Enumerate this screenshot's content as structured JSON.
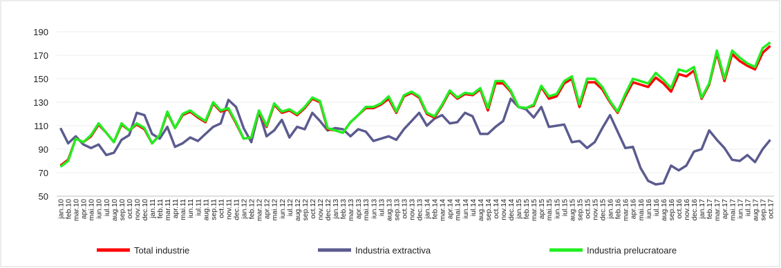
{
  "chart_data": {
    "type": "line",
    "categories": [
      "jan.10",
      "feb.10",
      "mar.10",
      "apr.10",
      "mai.10",
      "iun.10",
      "iul.10",
      "aug.10",
      "sep.10",
      "oct.10",
      "nov.10",
      "dec.10",
      "jan.11",
      "feb.11",
      "mar.11",
      "apr.11",
      "mai.11",
      "iun.11",
      "iul.11",
      "aug.11",
      "sep.11",
      "oct.11",
      "nov.11",
      "dec.11",
      "jan.12",
      "feb.12",
      "mar.12",
      "apr.12",
      "mai.12",
      "iun.12",
      "iul.12",
      "aug.12",
      "sep.12",
      "oct.12",
      "nov.12",
      "dec.12",
      "jan.13",
      "feb.13",
      "mar.13",
      "apr.13",
      "mai.13",
      "iun.13",
      "iul.13",
      "aug.13",
      "sep.13",
      "oct.13",
      "nov.13",
      "dec.13",
      "jan.14",
      "feb.14",
      "mar.14",
      "apr.14",
      "mai.14",
      "iun.14",
      "iul.14",
      "aug.14",
      "sep.14",
      "oct.14",
      "nov.14",
      "dec.14",
      "jan.15",
      "feb.15",
      "mar.15",
      "apr.15",
      "mai.15",
      "iun.15",
      "iul.15",
      "aug.15",
      "sep.15",
      "oct.15",
      "nov.15",
      "dec.15",
      "jan.16",
      "feb.16",
      "mar.16",
      "apr.16",
      "mai.16",
      "iun.16",
      "iul.16",
      "aug.16",
      "sep.16",
      "oct.16",
      "nov.16",
      "dec.16",
      "jan.17",
      "feb.17",
      "mar.17",
      "apr.17",
      "mai.17",
      "iun.17",
      "iul.17",
      "aug.17",
      "sep.17",
      "oct.17"
    ],
    "series": [
      {
        "name": "Total industrie",
        "color": "#ff0000",
        "values": [
          76,
          81,
          99,
          96,
          101,
          111,
          104,
          96,
          111,
          106,
          111,
          107,
          95,
          102,
          121,
          108,
          119,
          122,
          117,
          113,
          129,
          122,
          124,
          112,
          99,
          100,
          122,
          109,
          128,
          121,
          123,
          119,
          125,
          133,
          130,
          107,
          106,
          104,
          113,
          119,
          125,
          125,
          128,
          133,
          121,
          135,
          138,
          134,
          120,
          117,
          127,
          139,
          133,
          137,
          136,
          141,
          123,
          146,
          146,
          139,
          126,
          125,
          127,
          143,
          133,
          135,
          146,
          150,
          126,
          147,
          147,
          141,
          130,
          121,
          135,
          147,
          145,
          143,
          151,
          146,
          139,
          154,
          152,
          157,
          133,
          145,
          172,
          148,
          171,
          165,
          161,
          158,
          172,
          178
        ]
      },
      {
        "name": "Industria extractiva",
        "color": "#5b5b8f",
        "values": [
          108,
          95,
          101,
          94,
          91,
          94,
          85,
          87,
          98,
          102,
          121,
          119,
          103,
          99,
          109,
          92,
          95,
          100,
          97,
          103,
          109,
          112,
          132,
          126,
          108,
          96,
          122,
          101,
          106,
          115,
          100,
          109,
          107,
          121,
          114,
          106,
          108,
          107,
          101,
          107,
          105,
          97,
          99,
          101,
          98,
          107,
          114,
          121,
          110,
          116,
          119,
          112,
          113,
          121,
          118,
          103,
          103,
          109,
          114,
          133,
          126,
          124,
          117,
          126,
          109,
          110,
          111,
          96,
          97,
          91,
          96,
          108,
          119,
          105,
          91,
          92,
          74,
          63,
          60,
          61,
          76,
          72,
          76,
          88,
          90,
          106,
          98,
          91,
          81,
          80,
          85,
          79,
          90,
          98
        ]
      },
      {
        "name": "Industria prelucratoare",
        "color": "#22ee22",
        "values": [
          75,
          80,
          99,
          96,
          102,
          112,
          104,
          96,
          112,
          106,
          112,
          108,
          95,
          102,
          122,
          108,
          120,
          123,
          118,
          114,
          130,
          123,
          125,
          113,
          99,
          100,
          123,
          110,
          129,
          122,
          124,
          120,
          126,
          134,
          131,
          108,
          106,
          104,
          113,
          119,
          126,
          126,
          129,
          135,
          122,
          136,
          139,
          135,
          121,
          118,
          128,
          140,
          134,
          138,
          137,
          142,
          125,
          148,
          148,
          140,
          126,
          125,
          128,
          144,
          135,
          137,
          148,
          152,
          128,
          150,
          150,
          143,
          131,
          122,
          137,
          150,
          148,
          146,
          155,
          149,
          142,
          158,
          156,
          160,
          134,
          146,
          174,
          150,
          174,
          168,
          163,
          160,
          176,
          181
        ]
      }
    ],
    "ylim": [
      50,
      190
    ],
    "yticks": [
      50,
      70,
      90,
      110,
      130,
      150,
      170,
      190
    ],
    "grid": true,
    "legend": "bottom"
  }
}
